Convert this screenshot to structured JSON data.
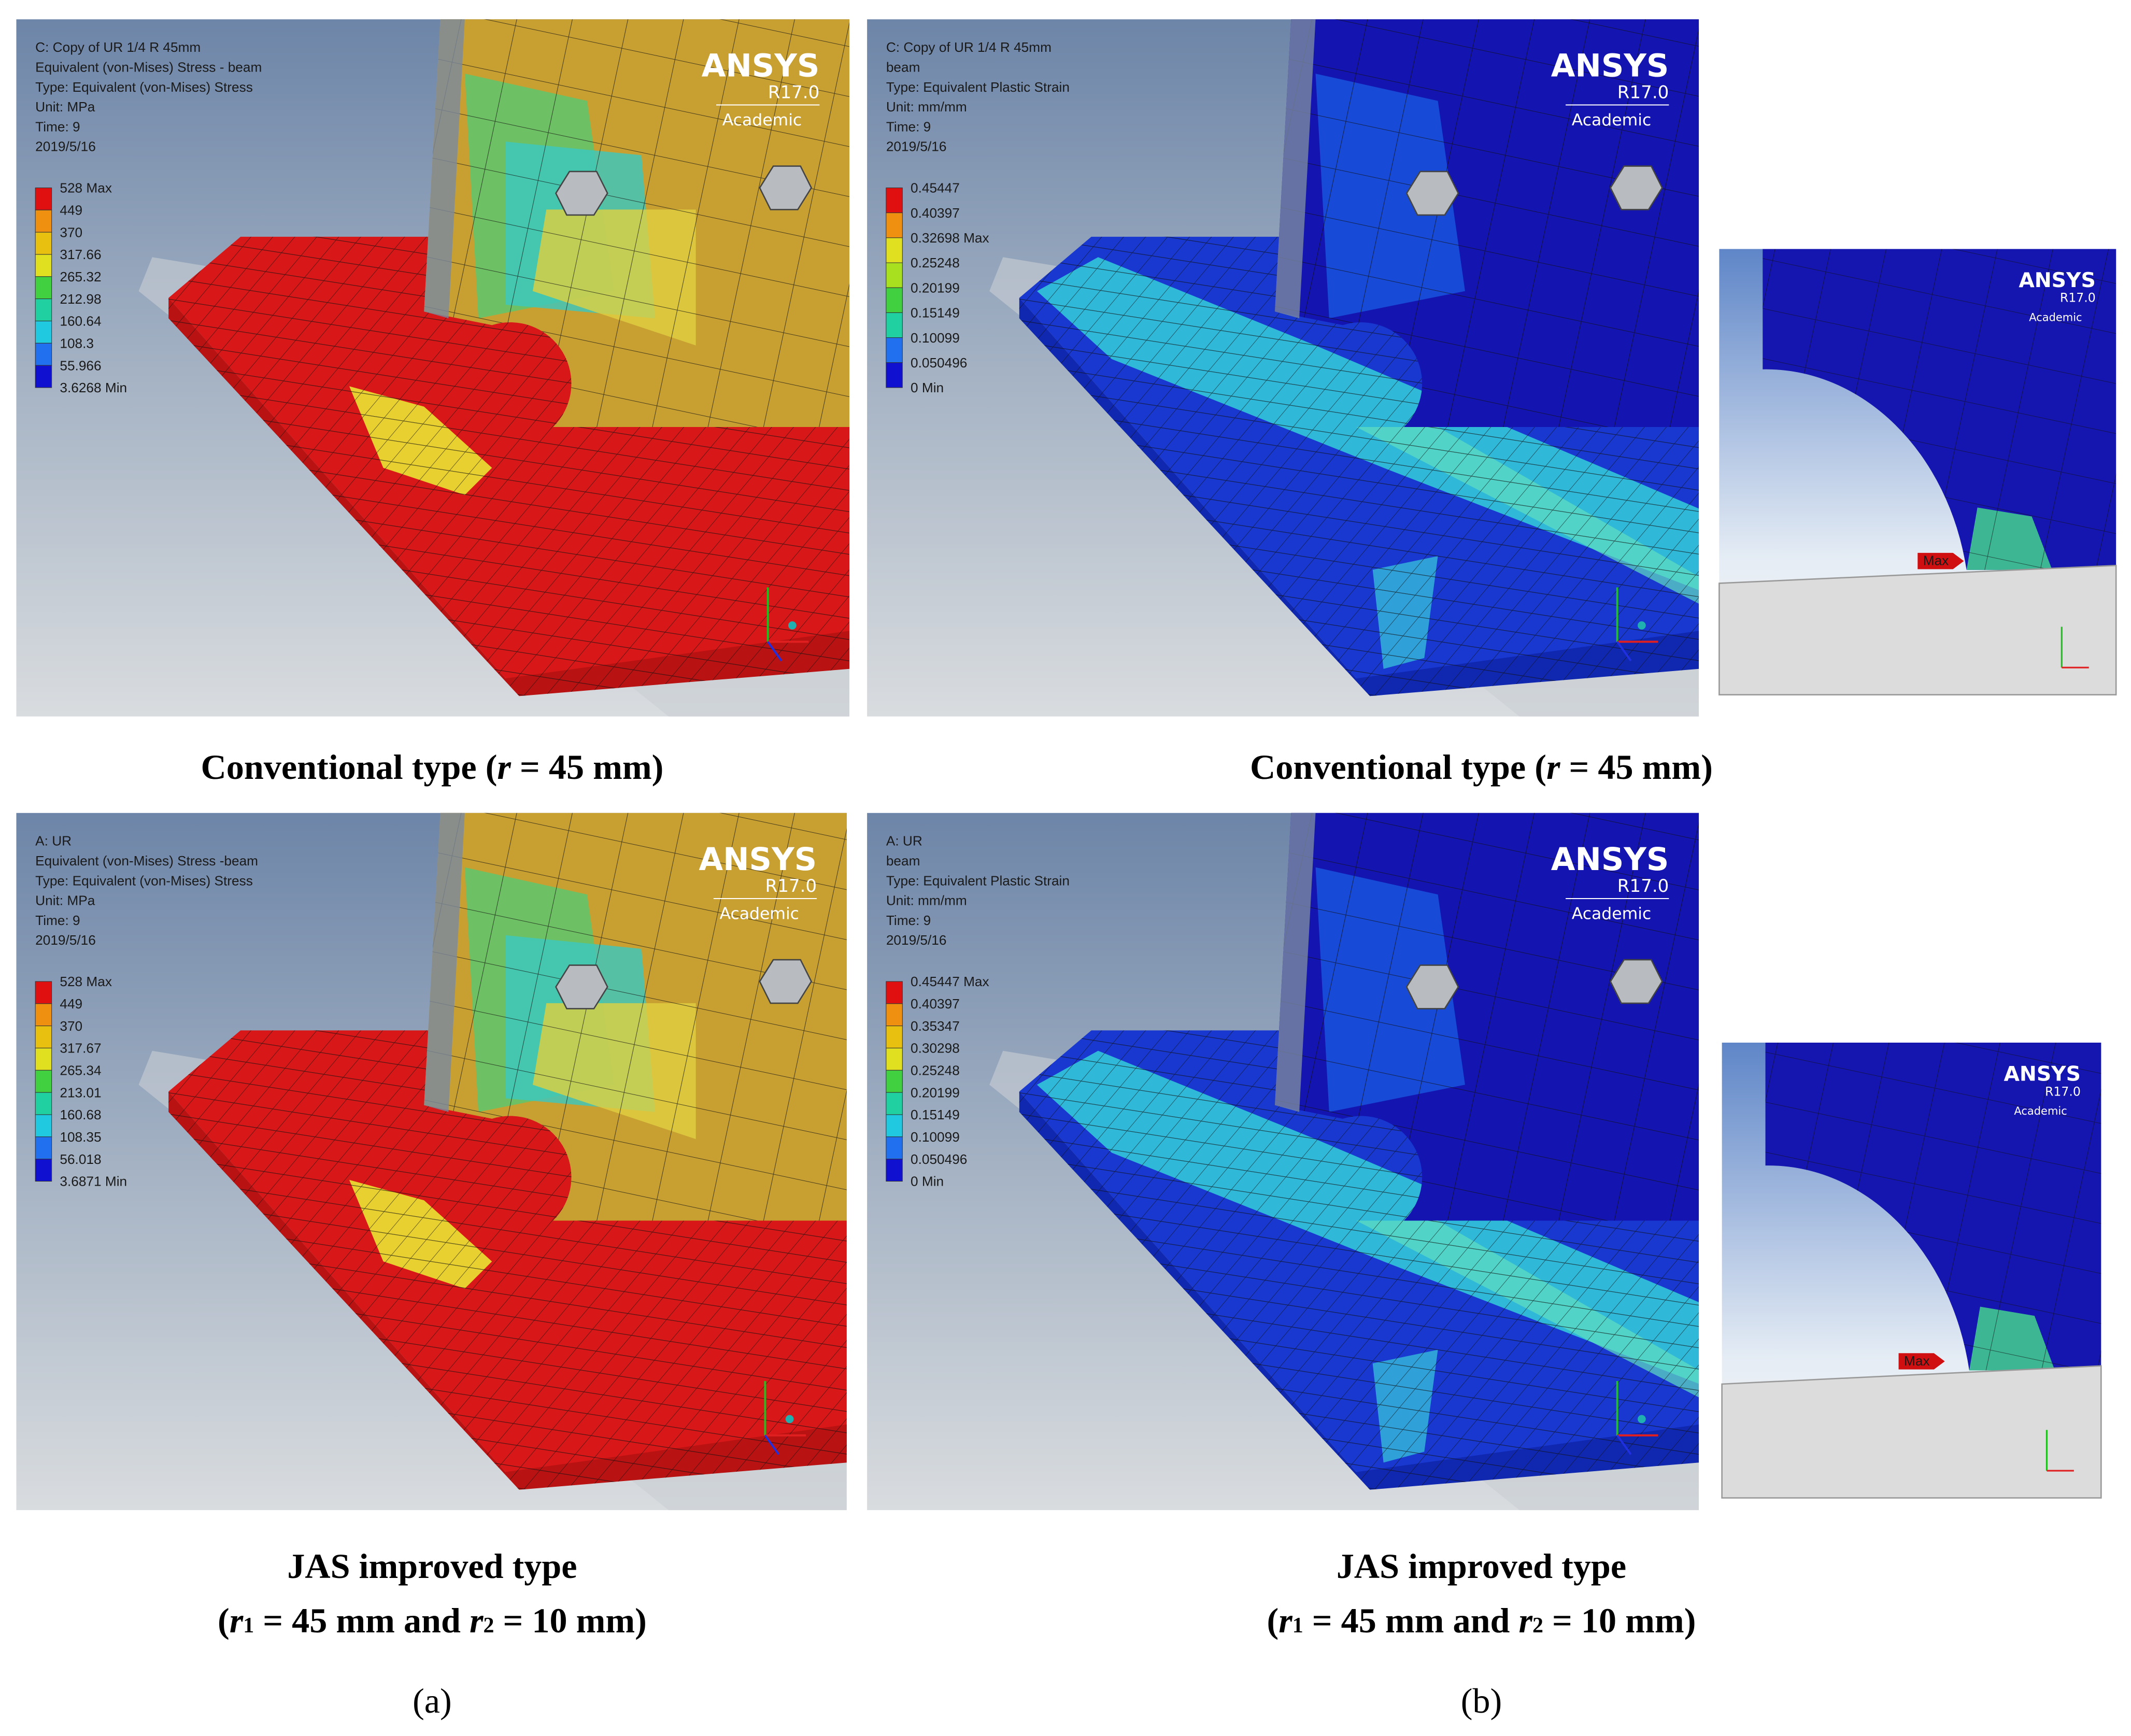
{
  "panels": [
    {
      "header": [
        "C: Copy of UR 1/4 R 45mm",
        "Equivalent (von-Mises) Stress - beam",
        "Type: Equivalent (von-Mises) Stress",
        "Unit: MPa",
        "Time: 9",
        "2019/5/16"
      ],
      "legend": [
        "528 Max",
        "449",
        "370",
        "317.66",
        "265.32",
        "212.98",
        "160.64",
        "108.3",
        "55.966",
        "3.6268 Min"
      ],
      "logo": [
        "ANSYS",
        "R17.0",
        "Academic"
      ]
    },
    {
      "header": [
        "C: Copy of UR 1/4 R 45mm",
        "beam",
        "Type: Equivalent Plastic Strain",
        "Unit: mm/mm",
        "Time: 9",
        "2019/5/16"
      ],
      "legend": [
        "0.45447",
        "0.40397",
        "0.32698 Max",
        "0.25248",
        "0.20199",
        "0.15149",
        "0.10099",
        "0.050496",
        "0 Min"
      ],
      "logo": [
        "ANSYS",
        "R17.0",
        "Academic"
      ]
    },
    {
      "header": [
        "A: UR",
        "Equivalent (von-Mises) Stress -beam",
        "Type: Equivalent (von-Mises) Stress",
        "Unit: MPa",
        "Time: 9",
        "2019/5/16"
      ],
      "legend": [
        "528 Max",
        "449",
        "370",
        "317.67",
        "265.34",
        "213.01",
        "160.68",
        "108.35",
        "56.018",
        "3.6871 Min"
      ],
      "logo": [
        "ANSYS",
        "R17.0",
        "Academic"
      ]
    },
    {
      "header": [
        "A: UR",
        "beam",
        "Type: Equivalent Plastic Strain",
        "Unit: mm/mm",
        "Time: 9",
        "2019/5/16"
      ],
      "legend": [
        "0.45447 Max",
        "0.40397",
        "0.35347",
        "0.30298",
        "0.25248",
        "0.20199",
        "0.15149",
        "0.10099",
        "0.050496",
        "0 Min"
      ],
      "logo": [
        "ANSYS",
        "R17.0",
        "Academic"
      ]
    }
  ],
  "insets": [
    {
      "logo": [
        "ANSYS",
        "R17.0",
        "Academic"
      ],
      "marker": "Max"
    },
    {
      "logo": [
        "ANSYS",
        "R17.0",
        "Academic"
      ],
      "marker": "Max"
    }
  ],
  "captions": [
    [
      "Conventional type (",
      "r",
      " = 45 mm)"
    ],
    [
      "Conventional type (",
      "r",
      " = 45 mm)"
    ],
    [
      "JAS improved type",
      "(",
      "r",
      "1",
      " = 45 mm and ",
      "r",
      "2",
      " = 10 mm)"
    ],
    [
      "JAS improved type",
      "(",
      "r",
      "1",
      " = 45 mm and ",
      "r",
      "2",
      " = 10 mm)"
    ]
  ],
  "labels": [
    "(a)",
    "(b)"
  ]
}
